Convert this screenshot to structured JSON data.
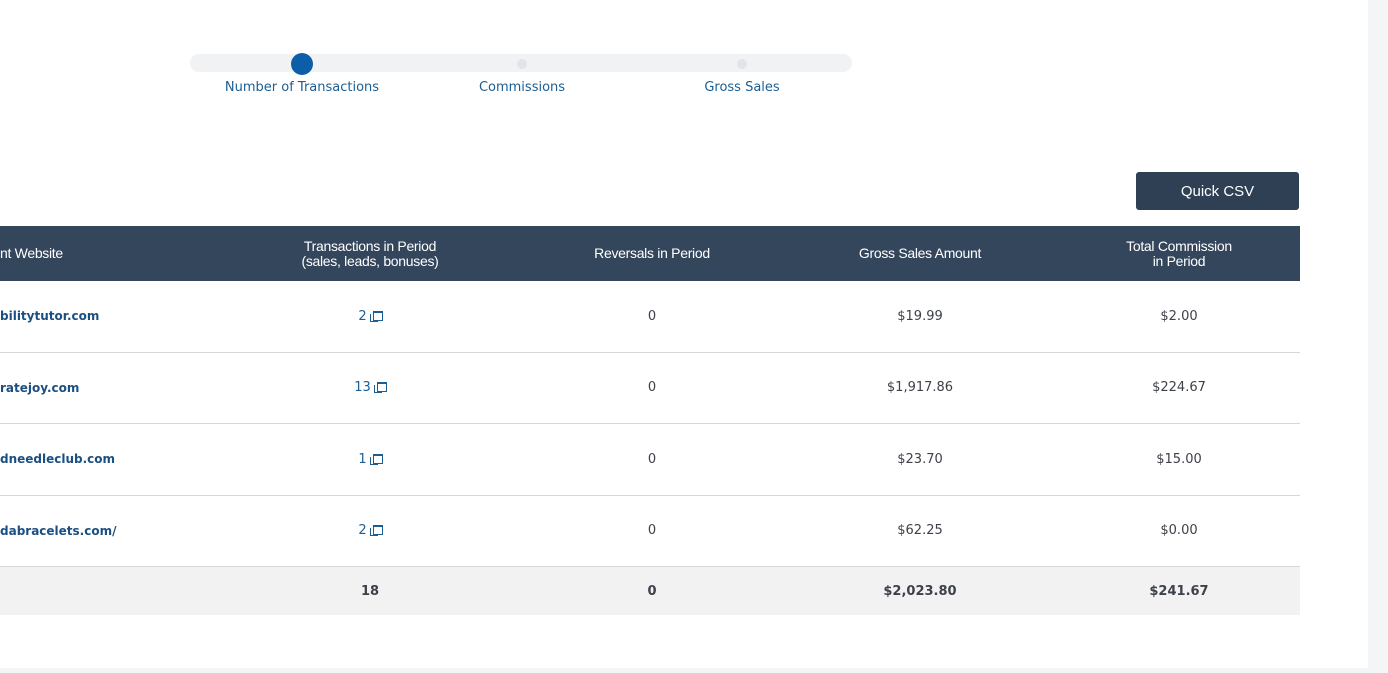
{
  "slider": {
    "labels": [
      "Number of Transactions",
      "Commissions",
      "Gross Sales"
    ],
    "selected": "Number of Transactions"
  },
  "toolbar": {
    "quick_csv_label": "Quick CSV"
  },
  "table": {
    "headers": {
      "website": "nt Website",
      "transactions_line1": "Transactions in Period",
      "transactions_line2": "(sales, leads, bonuses)",
      "reversals": "Reversals in Period",
      "gross_sales": "Gross Sales Amount",
      "commission_line1": "Total Commission",
      "commission_line2": "in Period"
    },
    "rows": [
      {
        "website": "bilitytutor.com",
        "transactions": "2",
        "reversals": "0",
        "gross_sales": "$19.99",
        "commission": "$2.00"
      },
      {
        "website": "ratejoy.com",
        "transactions": "13",
        "reversals": "0",
        "gross_sales": "$1,917.86",
        "commission": "$224.67"
      },
      {
        "website": "dneedleclub.com",
        "transactions": "1",
        "reversals": "0",
        "gross_sales": "$23.70",
        "commission": "$15.00"
      },
      {
        "website": "dabracelets.com/",
        "transactions": "2",
        "reversals": "0",
        "gross_sales": "$62.25",
        "commission": "$0.00"
      }
    ],
    "totals": {
      "transactions": "18",
      "reversals": "0",
      "gross_sales": "$2,023.80",
      "commission": "$241.67"
    }
  },
  "colors": {
    "header_bg": "#34465c",
    "accent": "#0d5ea8",
    "button_bg": "#2f4054"
  },
  "icons": {
    "transaction_link": "external-window-icon"
  }
}
